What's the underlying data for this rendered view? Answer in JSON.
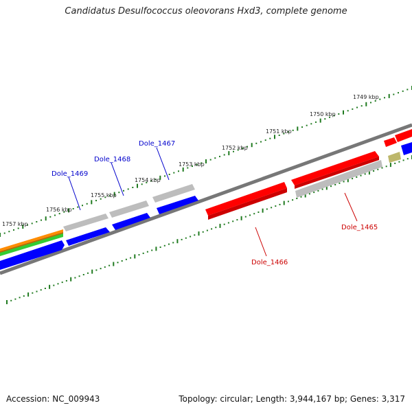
{
  "title": "Candidatus Desulfococcus oleovorans Hxd3, complete genome",
  "footer": {
    "accession": "Accession: NC_009943",
    "summary": "Topology: circular; Length: 3,944,167 bp; Genes: 3,317"
  },
  "ticks": [
    "1749 kbp",
    "1750 kbp",
    "1751 kbp",
    "1752 kbp",
    "1753 kbp",
    "1754 kbp",
    "1755 kbp",
    "1756 kbp",
    "1757 kbp"
  ],
  "gene_labels": [
    {
      "id": "Dole_1469",
      "color": "#0000cc"
    },
    {
      "id": "Dole_1468",
      "color": "#0000cc"
    },
    {
      "id": "Dole_1467",
      "color": "#0000cc"
    },
    {
      "id": "Dole_1466",
      "color": "#cc0000"
    },
    {
      "id": "Dole_1465",
      "color": "#cc0000"
    }
  ],
  "colors": {
    "backbone": "#808080",
    "cds_forward": "#ff0000",
    "cds_reverse": "#0000ff",
    "gene_grey": "#b8b8b8",
    "tick": "#1f7a1f",
    "orange": "#ff8c00",
    "green": "#33cc33",
    "khaki": "#bdb76b"
  }
}
